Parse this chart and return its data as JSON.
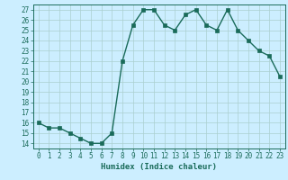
{
  "x": [
    0,
    1,
    2,
    3,
    4,
    5,
    6,
    7,
    8,
    9,
    10,
    11,
    12,
    13,
    14,
    15,
    16,
    17,
    18,
    19,
    20,
    21,
    22,
    23
  ],
  "y": [
    16,
    15.5,
    15.5,
    15,
    14.5,
    14,
    14,
    15,
    22,
    25.5,
    27,
    27,
    25.5,
    25,
    26.5,
    27,
    25.5,
    25,
    27,
    25,
    24,
    23,
    22.5,
    20.5
  ],
  "line_color": "#1a6b5a",
  "bg_color": "#cceeff",
  "grid_color": "#aacfcf",
  "xlabel": "Humidex (Indice chaleur)",
  "ylim": [
    13.5,
    27.5
  ],
  "xlim": [
    -0.5,
    23.5
  ],
  "yticks": [
    14,
    15,
    16,
    17,
    18,
    19,
    20,
    21,
    22,
    23,
    24,
    25,
    26,
    27
  ],
  "xtick_labels": [
    "0",
    "1",
    "2",
    "3",
    "4",
    "5",
    "6",
    "7",
    "8",
    "9",
    "10",
    "11",
    "12",
    "13",
    "14",
    "15",
    "16",
    "17",
    "18",
    "19",
    "20",
    "21",
    "22",
    "23"
  ],
  "marker_size": 2.5,
  "line_width": 1.0,
  "label_fontsize": 6.5,
  "tick_fontsize": 5.5
}
